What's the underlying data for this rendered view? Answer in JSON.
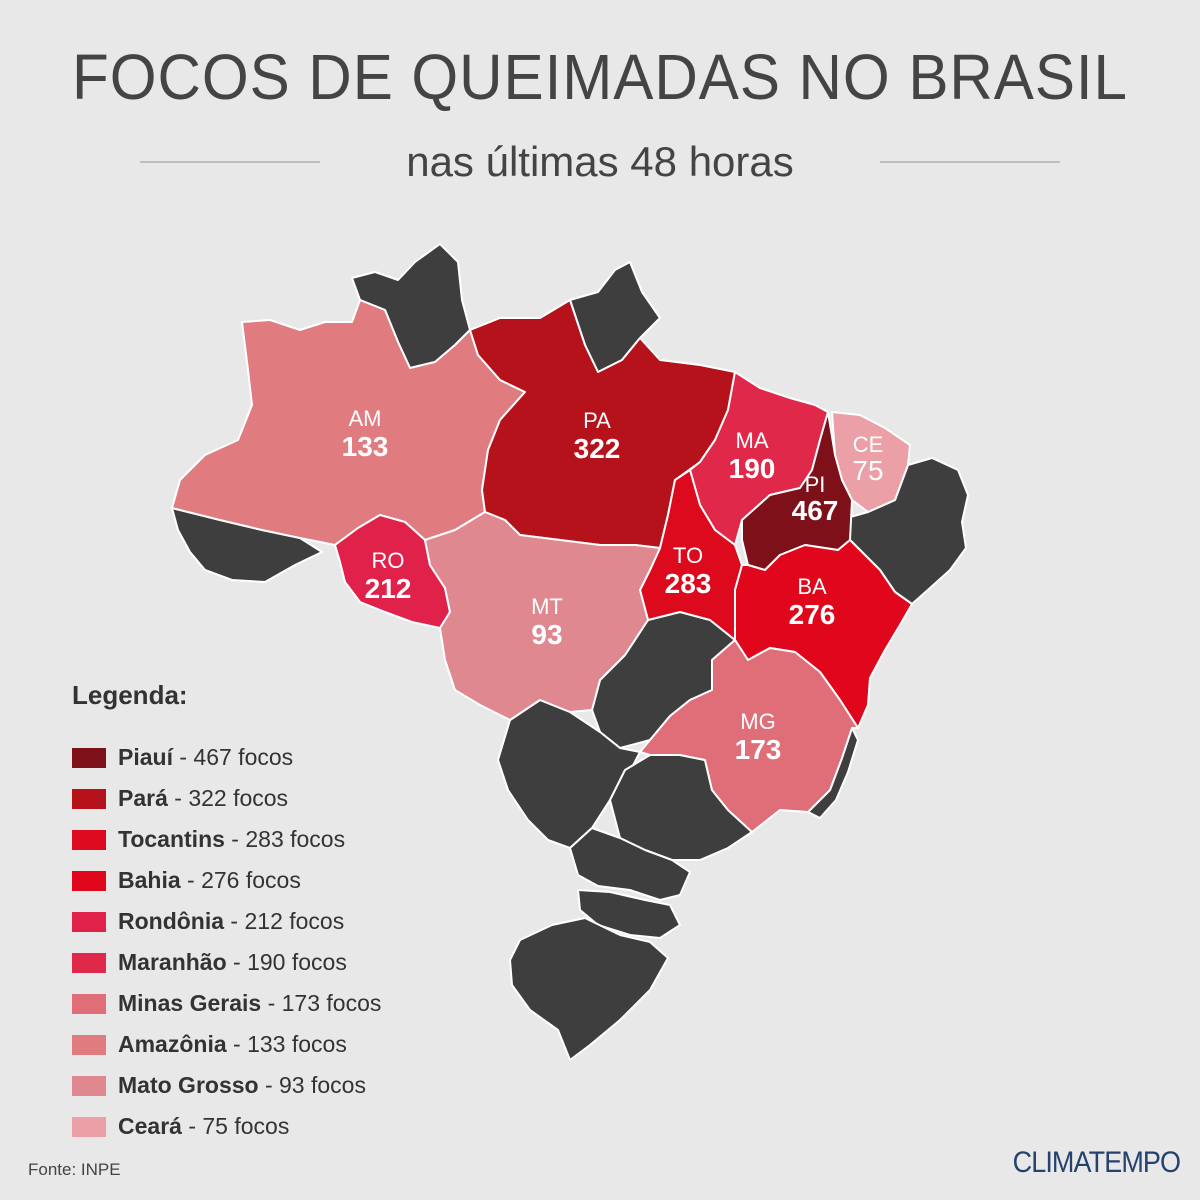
{
  "header": {
    "title": "FOCOS DE QUEIMADAS NO BRASIL",
    "subtitle": "nas últimas 48 horas"
  },
  "map": {
    "states": [
      {
        "code": "AM",
        "count": "133",
        "color": "#e07b80"
      },
      {
        "code": "PA",
        "count": "322",
        "color": "#b5121b"
      },
      {
        "code": "MA",
        "count": "190",
        "color": "#e0294a"
      },
      {
        "code": "CE",
        "count": "75",
        "color": "#eaa0a6"
      },
      {
        "code": "PI",
        "count": "467",
        "color": "#7d1018"
      },
      {
        "code": "RO",
        "count": "212",
        "color": "#e0214a"
      },
      {
        "code": "TO",
        "count": "283",
        "color": "#dd0a1e"
      },
      {
        "code": "BA",
        "count": "276",
        "color": "#e0061c"
      },
      {
        "code": "MT",
        "count": "93",
        "color": "#e08890"
      },
      {
        "code": "MG",
        "count": "173",
        "color": "#e06e78"
      }
    ],
    "other_states_color": "#3e3e3e",
    "background": "#e8e8e8"
  },
  "legend": {
    "title": "Legenda:",
    "items": [
      {
        "name": "Piauí",
        "text": " - 467 focos",
        "color": "#7d1018"
      },
      {
        "name": "Pará",
        "text": " - 322 focos",
        "color": "#b5121b"
      },
      {
        "name": "Tocantins",
        "text": " - 283 focos",
        "color": "#dd0a1e"
      },
      {
        "name": "Bahia",
        "text": " - 276 focos",
        "color": "#e0061c"
      },
      {
        "name": "Rondônia",
        "text": " - 212 focos",
        "color": "#e0214a"
      },
      {
        "name": "Maranhão",
        "text": " - 190 focos",
        "color": "#e0294a"
      },
      {
        "name": "Minas Gerais",
        "text": " - 173 focos",
        "color": "#e06e78"
      },
      {
        "name": "Amazônia",
        "text": " - 133 focos",
        "color": "#e07b80"
      },
      {
        "name": "Mato Grosso",
        "text": " - 93 focos",
        "color": "#e08890"
      },
      {
        "name": "Ceará",
        "text": " - 75 focos",
        "color": "#eaa0a6"
      }
    ]
  },
  "footer": {
    "source": "Fonte: INPE",
    "brand": "CLIMATEMPO"
  }
}
